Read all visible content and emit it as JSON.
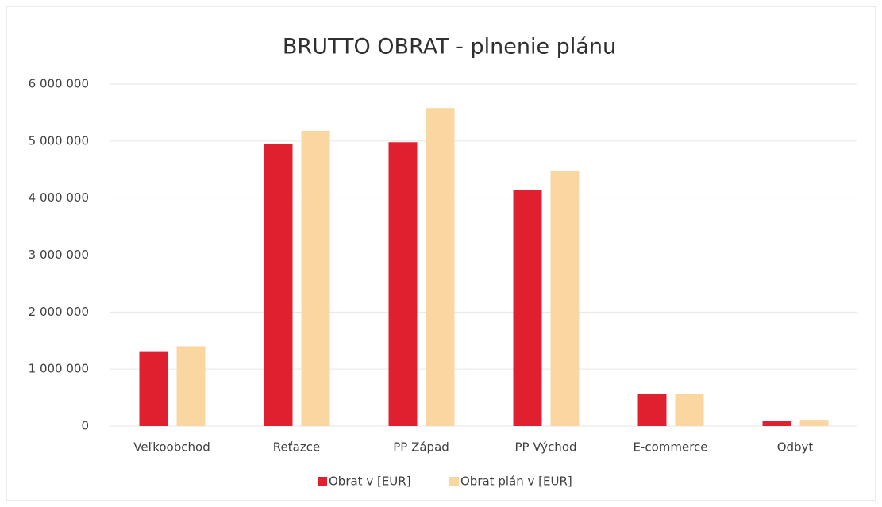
{
  "chart_data": {
    "type": "bar",
    "title": "BRUTTO OBRAT - plnenie plánu",
    "categories": [
      "Veľkoobchod",
      "Reťazce",
      "PP Západ",
      "PP Východ",
      "E-commerce",
      "Odbyt"
    ],
    "series": [
      {
        "name": "Obrat v [EUR]",
        "color": "#e0202f",
        "values": [
          1300000,
          4950000,
          4980000,
          4140000,
          560000,
          90000
        ]
      },
      {
        "name": "Obrat plán v [EUR]",
        "color": "#fad7a0",
        "values": [
          1400000,
          5180000,
          5580000,
          4480000,
          560000,
          110000
        ]
      }
    ],
    "ylim": [
      0,
      6000000
    ],
    "yticks": [
      0,
      {
        "value": 1000000,
        "label": "1 000 000"
      },
      {
        "value": 2000000,
        "label": "2 000 000"
      },
      {
        "value": 3000000,
        "label": "3 000 000"
      },
      {
        "value": 4000000,
        "label": "4 000 000"
      },
      {
        "value": 5000000,
        "label": "5 000 000"
      },
      {
        "value": 6000000,
        "label": "6 000 000"
      }
    ],
    "grid": true,
    "legend": "bottom"
  }
}
